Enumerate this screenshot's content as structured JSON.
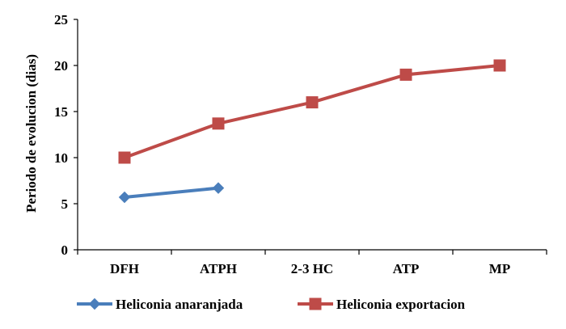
{
  "chart_data": {
    "type": "line",
    "title": "",
    "xlabel": "",
    "ylabel": "Periodo de evolucion (dias)",
    "categories": [
      "DFH",
      "ATPH",
      "2-3 HC",
      "ATP",
      "MP"
    ],
    "ylim": [
      0,
      25
    ],
    "yticks": [
      "0",
      "5",
      "10",
      "15",
      "20",
      "25"
    ],
    "grid": false,
    "legend_position": "bottom",
    "series": [
      {
        "name": "Heliconia anaranjada",
        "color": "#4a7ebb",
        "marker": "diamond",
        "values": [
          5.7,
          6.7,
          null,
          null,
          null
        ]
      },
      {
        "name": "Heliconia exportacion",
        "color": "#be4b48",
        "marker": "square",
        "values": [
          10,
          13.7,
          16,
          19,
          20
        ]
      }
    ]
  }
}
